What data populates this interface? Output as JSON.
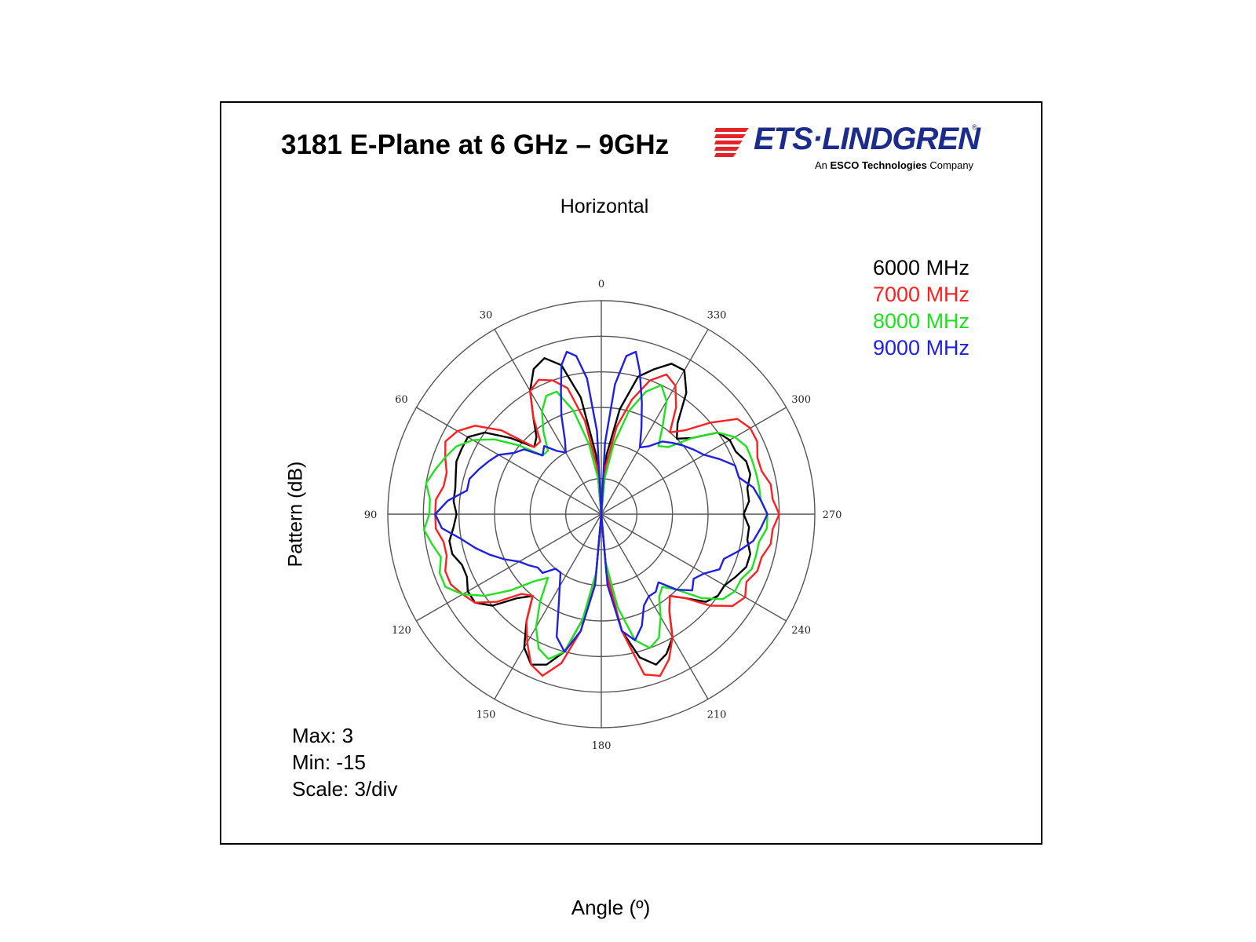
{
  "header": {
    "title": "3181 E-Plane at 6 GHz – 9GHz"
  },
  "logo": {
    "brand": "ETS·LINDGREN",
    "registered": "®",
    "sub_prefix": "An ",
    "sub_bold": "ESCO Technologies",
    "sub_suffix": " Company",
    "color": "#1c2c8c",
    "accent_color": "#e3242b"
  },
  "chart_data": {
    "type": "polar",
    "title": "3181 E-Plane at 6 GHz – 9GHz",
    "top_label": "Horizontal",
    "xlabel": "Angle (º)",
    "ylabel": "Pattern (dB)",
    "angle_direction": "counterclockwise",
    "zero_at": "top",
    "angle_ticks": [
      "0",
      "30",
      "60",
      "90",
      "120",
      "150",
      "180",
      "210",
      "240",
      "270",
      "300",
      "330"
    ],
    "angle_tick_values": [
      0,
      30,
      60,
      90,
      120,
      150,
      180,
      210,
      240,
      270,
      300,
      330
    ],
    "r_max": 3,
    "r_min": -15,
    "r_scale": 3,
    "r_unit": "dB",
    "grid": true,
    "legend_position": "top-right",
    "stats": {
      "max": "Max: 3",
      "min": "Min: -15",
      "scale": "Scale: 3/div"
    },
    "series": [
      {
        "name": "6000 MHz",
        "color": "#000000",
        "points": [
          [
            0,
            -15
          ],
          [
            5,
            -10
          ],
          [
            10,
            -5
          ],
          [
            15,
            -2
          ],
          [
            20,
            -1
          ],
          [
            25,
            -1.5
          ],
          [
            30,
            -3
          ],
          [
            35,
            -5
          ],
          [
            40,
            -6.5
          ],
          [
            45,
            -7
          ],
          [
            50,
            -5
          ],
          [
            55,
            -3
          ],
          [
            60,
            -2
          ],
          [
            65,
            -2
          ],
          [
            70,
            -2
          ],
          [
            75,
            -2.3
          ],
          [
            80,
            -2.5
          ],
          [
            85,
            -2.5
          ],
          [
            90,
            -2.8
          ],
          [
            95,
            -2.5
          ],
          [
            100,
            -2
          ],
          [
            105,
            -2
          ],
          [
            110,
            -2.5
          ],
          [
            115,
            -2.5
          ],
          [
            120,
            -2
          ],
          [
            125,
            -2
          ],
          [
            130,
            -3
          ],
          [
            135,
            -5
          ],
          [
            140,
            -6
          ],
          [
            145,
            -4
          ],
          [
            150,
            -2
          ],
          [
            155,
            -1
          ],
          [
            160,
            -1.5
          ],
          [
            165,
            -3
          ],
          [
            170,
            -6
          ],
          [
            175,
            -10
          ],
          [
            180,
            -15
          ],
          [
            185,
            -10
          ],
          [
            190,
            -5
          ],
          [
            195,
            -2.5
          ],
          [
            200,
            -1.5
          ],
          [
            205,
            -2
          ],
          [
            210,
            -3
          ],
          [
            215,
            -5
          ],
          [
            220,
            -6
          ],
          [
            225,
            -5
          ],
          [
            230,
            -3.5
          ],
          [
            235,
            -3
          ],
          [
            240,
            -3
          ],
          [
            245,
            -2.5
          ],
          [
            250,
            -2
          ],
          [
            255,
            -2
          ],
          [
            260,
            -2.5
          ],
          [
            265,
            -2.5
          ],
          [
            270,
            -3
          ],
          [
            275,
            -2.5
          ],
          [
            280,
            -2.5
          ],
          [
            285,
            -2
          ],
          [
            290,
            -2
          ],
          [
            295,
            -2.5
          ],
          [
            300,
            -2.5
          ],
          [
            305,
            -3
          ],
          [
            310,
            -5
          ],
          [
            315,
            -6
          ],
          [
            320,
            -5
          ],
          [
            325,
            -2.5
          ],
          [
            330,
            -1
          ],
          [
            335,
            -1
          ],
          [
            340,
            -2
          ],
          [
            345,
            -3
          ],
          [
            350,
            -6
          ],
          [
            355,
            -10
          ]
        ]
      },
      {
        "name": "7000 MHz",
        "color": "#ff2020",
        "points": [
          [
            0,
            -15
          ],
          [
            5,
            -11
          ],
          [
            10,
            -7
          ],
          [
            15,
            -4
          ],
          [
            20,
            -3
          ],
          [
            25,
            -2.5
          ],
          [
            30,
            -3
          ],
          [
            35,
            -5
          ],
          [
            40,
            -7
          ],
          [
            45,
            -7
          ],
          [
            50,
            -4
          ],
          [
            55,
            -2
          ],
          [
            60,
            -1
          ],
          [
            65,
            -0.5
          ],
          [
            70,
            -1
          ],
          [
            75,
            -1.5
          ],
          [
            80,
            -1.5
          ],
          [
            85,
            -1
          ],
          [
            90,
            -1
          ],
          [
            95,
            -1
          ],
          [
            100,
            -1.5
          ],
          [
            105,
            -1.5
          ],
          [
            110,
            -1
          ],
          [
            115,
            -1
          ],
          [
            120,
            -1.5
          ],
          [
            125,
            -2
          ],
          [
            130,
            -3.5
          ],
          [
            135,
            -5.5
          ],
          [
            140,
            -6
          ],
          [
            145,
            -4
          ],
          [
            150,
            -2.5
          ],
          [
            155,
            -1
          ],
          [
            160,
            -0.5
          ],
          [
            165,
            -2
          ],
          [
            170,
            -5
          ],
          [
            175,
            -10
          ],
          [
            180,
            -15
          ],
          [
            185,
            -10
          ],
          [
            190,
            -5
          ],
          [
            195,
            -1
          ],
          [
            200,
            -0.5
          ],
          [
            205,
            -1.5
          ],
          [
            210,
            -3
          ],
          [
            215,
            -5
          ],
          [
            220,
            -6
          ],
          [
            225,
            -5
          ],
          [
            230,
            -3
          ],
          [
            235,
            -1.5
          ],
          [
            240,
            -1
          ],
          [
            245,
            -1.5
          ],
          [
            250,
            -1
          ],
          [
            255,
            -1
          ],
          [
            260,
            -0.5
          ],
          [
            265,
            -0.5
          ],
          [
            270,
            0
          ],
          [
            275,
            -0.5
          ],
          [
            280,
            -0.5
          ],
          [
            285,
            -1
          ],
          [
            290,
            -1
          ],
          [
            295,
            -0.5
          ],
          [
            300,
            -0.5
          ],
          [
            305,
            -1
          ],
          [
            310,
            -3
          ],
          [
            315,
            -5
          ],
          [
            320,
            -6
          ],
          [
            325,
            -4
          ],
          [
            330,
            -2.5
          ],
          [
            335,
            -2
          ],
          [
            340,
            -3
          ],
          [
            345,
            -5
          ],
          [
            350,
            -7.5
          ],
          [
            355,
            -11
          ]
        ]
      },
      {
        "name": "8000 MHz",
        "color": "#20e020",
        "points": [
          [
            0,
            -15
          ],
          [
            5,
            -12
          ],
          [
            10,
            -9
          ],
          [
            15,
            -6
          ],
          [
            20,
            -4
          ],
          [
            25,
            -4
          ],
          [
            30,
            -5
          ],
          [
            35,
            -6.5
          ],
          [
            40,
            -8
          ],
          [
            45,
            -8
          ],
          [
            50,
            -6
          ],
          [
            55,
            -4
          ],
          [
            60,
            -2.5
          ],
          [
            65,
            -1.5
          ],
          [
            70,
            -1
          ],
          [
            75,
            -0.5
          ],
          [
            80,
            0
          ],
          [
            85,
            -0.5
          ],
          [
            90,
            -0.5
          ],
          [
            95,
            0
          ],
          [
            100,
            -0.5
          ],
          [
            105,
            -1
          ],
          [
            110,
            -0.5
          ],
          [
            115,
            -0.5
          ],
          [
            120,
            -1.5
          ],
          [
            125,
            -3
          ],
          [
            130,
            -5
          ],
          [
            135,
            -7
          ],
          [
            140,
            -8
          ],
          [
            145,
            -6
          ],
          [
            150,
            -4
          ],
          [
            155,
            -2.5
          ],
          [
            160,
            -2
          ],
          [
            165,
            -3
          ],
          [
            170,
            -6
          ],
          [
            175,
            -10
          ],
          [
            180,
            -15
          ],
          [
            185,
            -11
          ],
          [
            190,
            -7
          ],
          [
            195,
            -4
          ],
          [
            200,
            -3
          ],
          [
            205,
            -3.5
          ],
          [
            210,
            -5
          ],
          [
            215,
            -6.5
          ],
          [
            220,
            -7
          ],
          [
            225,
            -6
          ],
          [
            230,
            -4
          ],
          [
            235,
            -2.5
          ],
          [
            240,
            -2
          ],
          [
            245,
            -2
          ],
          [
            250,
            -1.5
          ],
          [
            255,
            -1.5
          ],
          [
            260,
            -1.5
          ],
          [
            265,
            -1
          ],
          [
            270,
            -1
          ],
          [
            275,
            -1.5
          ],
          [
            280,
            -1.5
          ],
          [
            285,
            -1.5
          ],
          [
            290,
            -1.5
          ],
          [
            295,
            -1.5
          ],
          [
            300,
            -2
          ],
          [
            305,
            -3
          ],
          [
            310,
            -5
          ],
          [
            315,
            -7
          ],
          [
            320,
            -7.5
          ],
          [
            325,
            -6
          ],
          [
            330,
            -4
          ],
          [
            335,
            -3
          ],
          [
            340,
            -4
          ],
          [
            345,
            -6
          ],
          [
            350,
            -9
          ],
          [
            355,
            -12
          ]
        ]
      },
      {
        "name": "9000 MHz",
        "color": "#2020e0",
        "points": [
          [
            0,
            -15
          ],
          [
            3,
            -8
          ],
          [
            6,
            -3.5
          ],
          [
            9,
            -1.5
          ],
          [
            12,
            -1
          ],
          [
            15,
            -2
          ],
          [
            18,
            -4
          ],
          [
            22,
            -6
          ],
          [
            26,
            -8
          ],
          [
            30,
            -9
          ],
          [
            35,
            -8.5
          ],
          [
            40,
            -7.5
          ],
          [
            45,
            -8
          ],
          [
            50,
            -6.5
          ],
          [
            55,
            -6
          ],
          [
            60,
            -5
          ],
          [
            65,
            -4.5
          ],
          [
            70,
            -4
          ],
          [
            75,
            -3.5
          ],
          [
            80,
            -3.5
          ],
          [
            85,
            -2
          ],
          [
            90,
            -1
          ],
          [
            95,
            -1.5
          ],
          [
            100,
            -3
          ],
          [
            105,
            -4
          ],
          [
            110,
            -5
          ],
          [
            115,
            -6
          ],
          [
            120,
            -7
          ],
          [
            125,
            -7.5
          ],
          [
            130,
            -8
          ],
          [
            135,
            -8
          ],
          [
            140,
            -9
          ],
          [
            145,
            -9
          ],
          [
            150,
            -8
          ],
          [
            155,
            -6.5
          ],
          [
            160,
            -4
          ],
          [
            165,
            -3
          ],
          [
            170,
            -5
          ],
          [
            175,
            -9
          ],
          [
            180,
            -15
          ],
          [
            185,
            -9
          ],
          [
            190,
            -5
          ],
          [
            195,
            -4
          ],
          [
            200,
            -5
          ],
          [
            205,
            -6.5
          ],
          [
            210,
            -7
          ],
          [
            215,
            -7
          ],
          [
            220,
            -7.5
          ],
          [
            225,
            -6
          ],
          [
            230,
            -5
          ],
          [
            235,
            -5.5
          ],
          [
            240,
            -5
          ],
          [
            245,
            -4
          ],
          [
            250,
            -4
          ],
          [
            255,
            -3
          ],
          [
            260,
            -2
          ],
          [
            265,
            -1.5
          ],
          [
            270,
            -1
          ],
          [
            275,
            -1.5
          ],
          [
            280,
            -2
          ],
          [
            285,
            -3
          ],
          [
            290,
            -3
          ],
          [
            295,
            -4
          ],
          [
            300,
            -5
          ],
          [
            305,
            -5.5
          ],
          [
            310,
            -6
          ],
          [
            315,
            -6.5
          ],
          [
            320,
            -7
          ],
          [
            325,
            -8
          ],
          [
            330,
            -8.5
          ],
          [
            335,
            -7
          ],
          [
            340,
            -5
          ],
          [
            345,
            -2.5
          ],
          [
            348,
            -1
          ],
          [
            351,
            -1.5
          ],
          [
            354,
            -4
          ],
          [
            357,
            -9
          ]
        ]
      }
    ]
  }
}
